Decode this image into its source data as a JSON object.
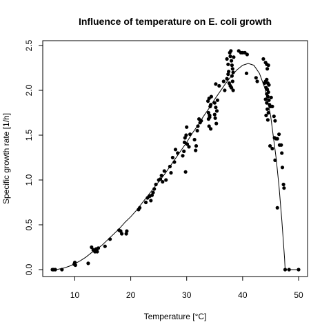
{
  "chart_data": {
    "type": "scatter",
    "title": "Influence of temperature on E. coli growth",
    "xlabel": "Temperature [°C]",
    "ylabel": "Specific growth rate [1/h]",
    "xlim": [
      5,
      51
    ],
    "ylim": [
      -0.1,
      2.5
    ],
    "xticks": [
      10,
      20,
      30,
      40,
      50
    ],
    "yticks": [
      0.0,
      0.5,
      1.0,
      1.5,
      2.0,
      2.5
    ],
    "xtick_labels": [
      "10",
      "20",
      "30",
      "40",
      "50"
    ],
    "ytick_labels": [
      "0.0",
      "0.5",
      "1.0",
      "1.5",
      "2.0",
      "2.5"
    ],
    "grid": false,
    "legend": "none",
    "series": [
      {
        "kind": "points",
        "color": "#000000",
        "points": [
          [
            6.0,
            0.0
          ],
          [
            6.2,
            0.0
          ],
          [
            6.5,
            0.0
          ],
          [
            7.7,
            0.0
          ],
          [
            9.9,
            0.06
          ],
          [
            10.0,
            0.08
          ],
          [
            10.1,
            0.05
          ],
          [
            12.4,
            0.07
          ],
          [
            13.0,
            0.25
          ],
          [
            13.3,
            0.22
          ],
          [
            13.6,
            0.2
          ],
          [
            13.8,
            0.23
          ],
          [
            13.9,
            0.21
          ],
          [
            14.0,
            0.2
          ],
          [
            14.2,
            0.24
          ],
          [
            15.4,
            0.26
          ],
          [
            16.3,
            0.34
          ],
          [
            17.9,
            0.44
          ],
          [
            18.2,
            0.43
          ],
          [
            18.4,
            0.4
          ],
          [
            19.2,
            0.4
          ],
          [
            19.3,
            0.43
          ],
          [
            21.4,
            0.67
          ],
          [
            21.6,
            0.69
          ],
          [
            22.7,
            0.75
          ],
          [
            23.0,
            0.8
          ],
          [
            23.4,
            0.82
          ],
          [
            23.6,
            0.77
          ],
          [
            23.8,
            0.83
          ],
          [
            24.0,
            0.86
          ],
          [
            24.2,
            0.9
          ],
          [
            24.5,
            0.95
          ],
          [
            25.0,
            1.0
          ],
          [
            25.3,
            1.01
          ],
          [
            25.5,
            1.05
          ],
          [
            25.7,
            0.98
          ],
          [
            26.0,
            1.1
          ],
          [
            26.3,
            1.0
          ],
          [
            27.0,
            1.15
          ],
          [
            27.2,
            1.08
          ],
          [
            27.5,
            1.25
          ],
          [
            27.8,
            1.2
          ],
          [
            28.0,
            1.34
          ],
          [
            28.4,
            1.3
          ],
          [
            29.3,
            1.27
          ],
          [
            29.5,
            1.32
          ],
          [
            29.6,
            1.42
          ],
          [
            29.7,
            1.47
          ],
          [
            29.9,
            1.5
          ],
          [
            30.0,
            1.59
          ],
          [
            30.1,
            1.4
          ],
          [
            30.4,
            1.37
          ],
          [
            30.6,
            1.51
          ],
          [
            29.8,
            1.09
          ],
          [
            31.4,
            1.45
          ],
          [
            31.6,
            1.33
          ],
          [
            31.7,
            1.38
          ],
          [
            31.9,
            1.55
          ],
          [
            32.0,
            1.6
          ],
          [
            32.2,
            1.68
          ],
          [
            32.4,
            1.64
          ],
          [
            32.6,
            1.66
          ],
          [
            33.8,
            1.88
          ],
          [
            34.0,
            1.91
          ],
          [
            34.2,
            1.82
          ],
          [
            34.3,
            1.84
          ],
          [
            34.1,
            1.72
          ],
          [
            33.9,
            1.68
          ],
          [
            34.0,
            1.6
          ],
          [
            34.3,
            1.57
          ],
          [
            34.1,
            1.7
          ],
          [
            33.9,
            1.75
          ],
          [
            34.4,
            1.93
          ],
          [
            35.0,
            1.86
          ],
          [
            35.2,
            1.81
          ],
          [
            35.4,
            1.77
          ],
          [
            35.1,
            1.69
          ],
          [
            35.3,
            1.63
          ],
          [
            35.0,
            1.73
          ],
          [
            35.5,
            1.89
          ],
          [
            35.2,
            2.07
          ],
          [
            35.8,
            2.05
          ],
          [
            36.6,
            2.1
          ],
          [
            36.8,
            2.0
          ],
          [
            37.2,
            2.13
          ],
          [
            37.4,
            2.18
          ],
          [
            37.6,
            2.08
          ],
          [
            37.8,
            2.05
          ],
          [
            37.2,
            2.35
          ],
          [
            37.4,
            2.29
          ],
          [
            37.5,
            2.21
          ],
          [
            37.7,
            2.42
          ],
          [
            37.9,
            2.44
          ],
          [
            37.8,
            2.38
          ],
          [
            38.0,
            2.33
          ],
          [
            38.1,
            2.28
          ],
          [
            38.2,
            2.24
          ],
          [
            38.3,
            2.2
          ],
          [
            38.1,
            2.16
          ],
          [
            38.2,
            2.1
          ],
          [
            38.0,
            2.03
          ],
          [
            38.3,
            2.0
          ],
          [
            38.4,
            2.37
          ],
          [
            39.3,
            2.44
          ],
          [
            39.7,
            2.42
          ],
          [
            40.0,
            2.42
          ],
          [
            40.4,
            2.42
          ],
          [
            40.8,
            2.4
          ],
          [
            40.7,
            2.19
          ],
          [
            42.4,
            2.14
          ],
          [
            42.6,
            2.1
          ],
          [
            43.7,
            2.35
          ],
          [
            44.1,
            2.31
          ],
          [
            44.3,
            2.29
          ],
          [
            44.6,
            2.28
          ],
          [
            44.4,
            2.24
          ],
          [
            43.9,
            2.08
          ],
          [
            44.1,
            2.1
          ],
          [
            44.3,
            2.12
          ],
          [
            44.5,
            2.08
          ],
          [
            44.7,
            2.06
          ],
          [
            44.2,
            2.03
          ],
          [
            44.4,
            2.01
          ],
          [
            44.6,
            1.98
          ],
          [
            44.3,
            1.96
          ],
          [
            44.5,
            1.93
          ],
          [
            44.1,
            1.9
          ],
          [
            44.7,
            1.89
          ],
          [
            44.3,
            1.86
          ],
          [
            44.8,
            1.84
          ],
          [
            45.0,
            1.82
          ],
          [
            44.4,
            1.79
          ],
          [
            44.6,
            1.75
          ],
          [
            44.2,
            1.72
          ],
          [
            44.5,
            1.67
          ],
          [
            45.1,
            1.92
          ],
          [
            45.3,
            1.82
          ],
          [
            45.6,
            1.71
          ],
          [
            45.8,
            1.66
          ],
          [
            44.9,
            1.38
          ],
          [
            45.3,
            1.35
          ],
          [
            45.7,
            1.47
          ],
          [
            46.0,
            1.46
          ],
          [
            46.2,
            1.46
          ],
          [
            45.8,
            1.22
          ],
          [
            46.6,
            1.39
          ],
          [
            46.9,
            1.39
          ],
          [
            46.5,
            1.51
          ],
          [
            47.0,
            1.3
          ],
          [
            47.1,
            1.14
          ],
          [
            47.3,
            0.95
          ],
          [
            47.4,
            0.91
          ],
          [
            46.2,
            0.69
          ],
          [
            47.6,
            0.0
          ],
          [
            48.3,
            0.0
          ],
          [
            50.0,
            0.0
          ]
        ]
      },
      {
        "kind": "curve",
        "color": "#000000",
        "points": [
          [
            6.0,
            0.0
          ],
          [
            7.0,
            0.004
          ],
          [
            8.0,
            0.017
          ],
          [
            9.0,
            0.038
          ],
          [
            10.0,
            0.066
          ],
          [
            11.0,
            0.099
          ],
          [
            12.0,
            0.14
          ],
          [
            13.0,
            0.19
          ],
          [
            14.0,
            0.23
          ],
          [
            15.0,
            0.28
          ],
          [
            16.0,
            0.34
          ],
          [
            17.0,
            0.4
          ],
          [
            18.0,
            0.46
          ],
          [
            19.0,
            0.53
          ],
          [
            20.0,
            0.59
          ],
          [
            21.0,
            0.66
          ],
          [
            22.0,
            0.74
          ],
          [
            23.0,
            0.82
          ],
          [
            24.0,
            0.9
          ],
          [
            25.0,
            0.98
          ],
          [
            26.0,
            1.06
          ],
          [
            27.0,
            1.15
          ],
          [
            28.0,
            1.24
          ],
          [
            29.0,
            1.33
          ],
          [
            30.0,
            1.42
          ],
          [
            31.0,
            1.52
          ],
          [
            32.0,
            1.61
          ],
          [
            33.0,
            1.71
          ],
          [
            34.0,
            1.8
          ],
          [
            35.0,
            1.9
          ],
          [
            36.0,
            1.99
          ],
          [
            37.0,
            2.08
          ],
          [
            38.0,
            2.16
          ],
          [
            39.0,
            2.23
          ],
          [
            40.0,
            2.28
          ],
          [
            41.0,
            2.3
          ],
          [
            42.0,
            2.28
          ],
          [
            43.0,
            2.19
          ],
          [
            44.0,
            2.02
          ],
          [
            45.0,
            1.72
          ],
          [
            46.0,
            1.24
          ],
          [
            46.5,
            0.93
          ],
          [
            47.0,
            0.55
          ],
          [
            47.5,
            0.12
          ],
          [
            47.6,
            0.0
          ],
          [
            50.0,
            0.0
          ]
        ]
      }
    ]
  }
}
